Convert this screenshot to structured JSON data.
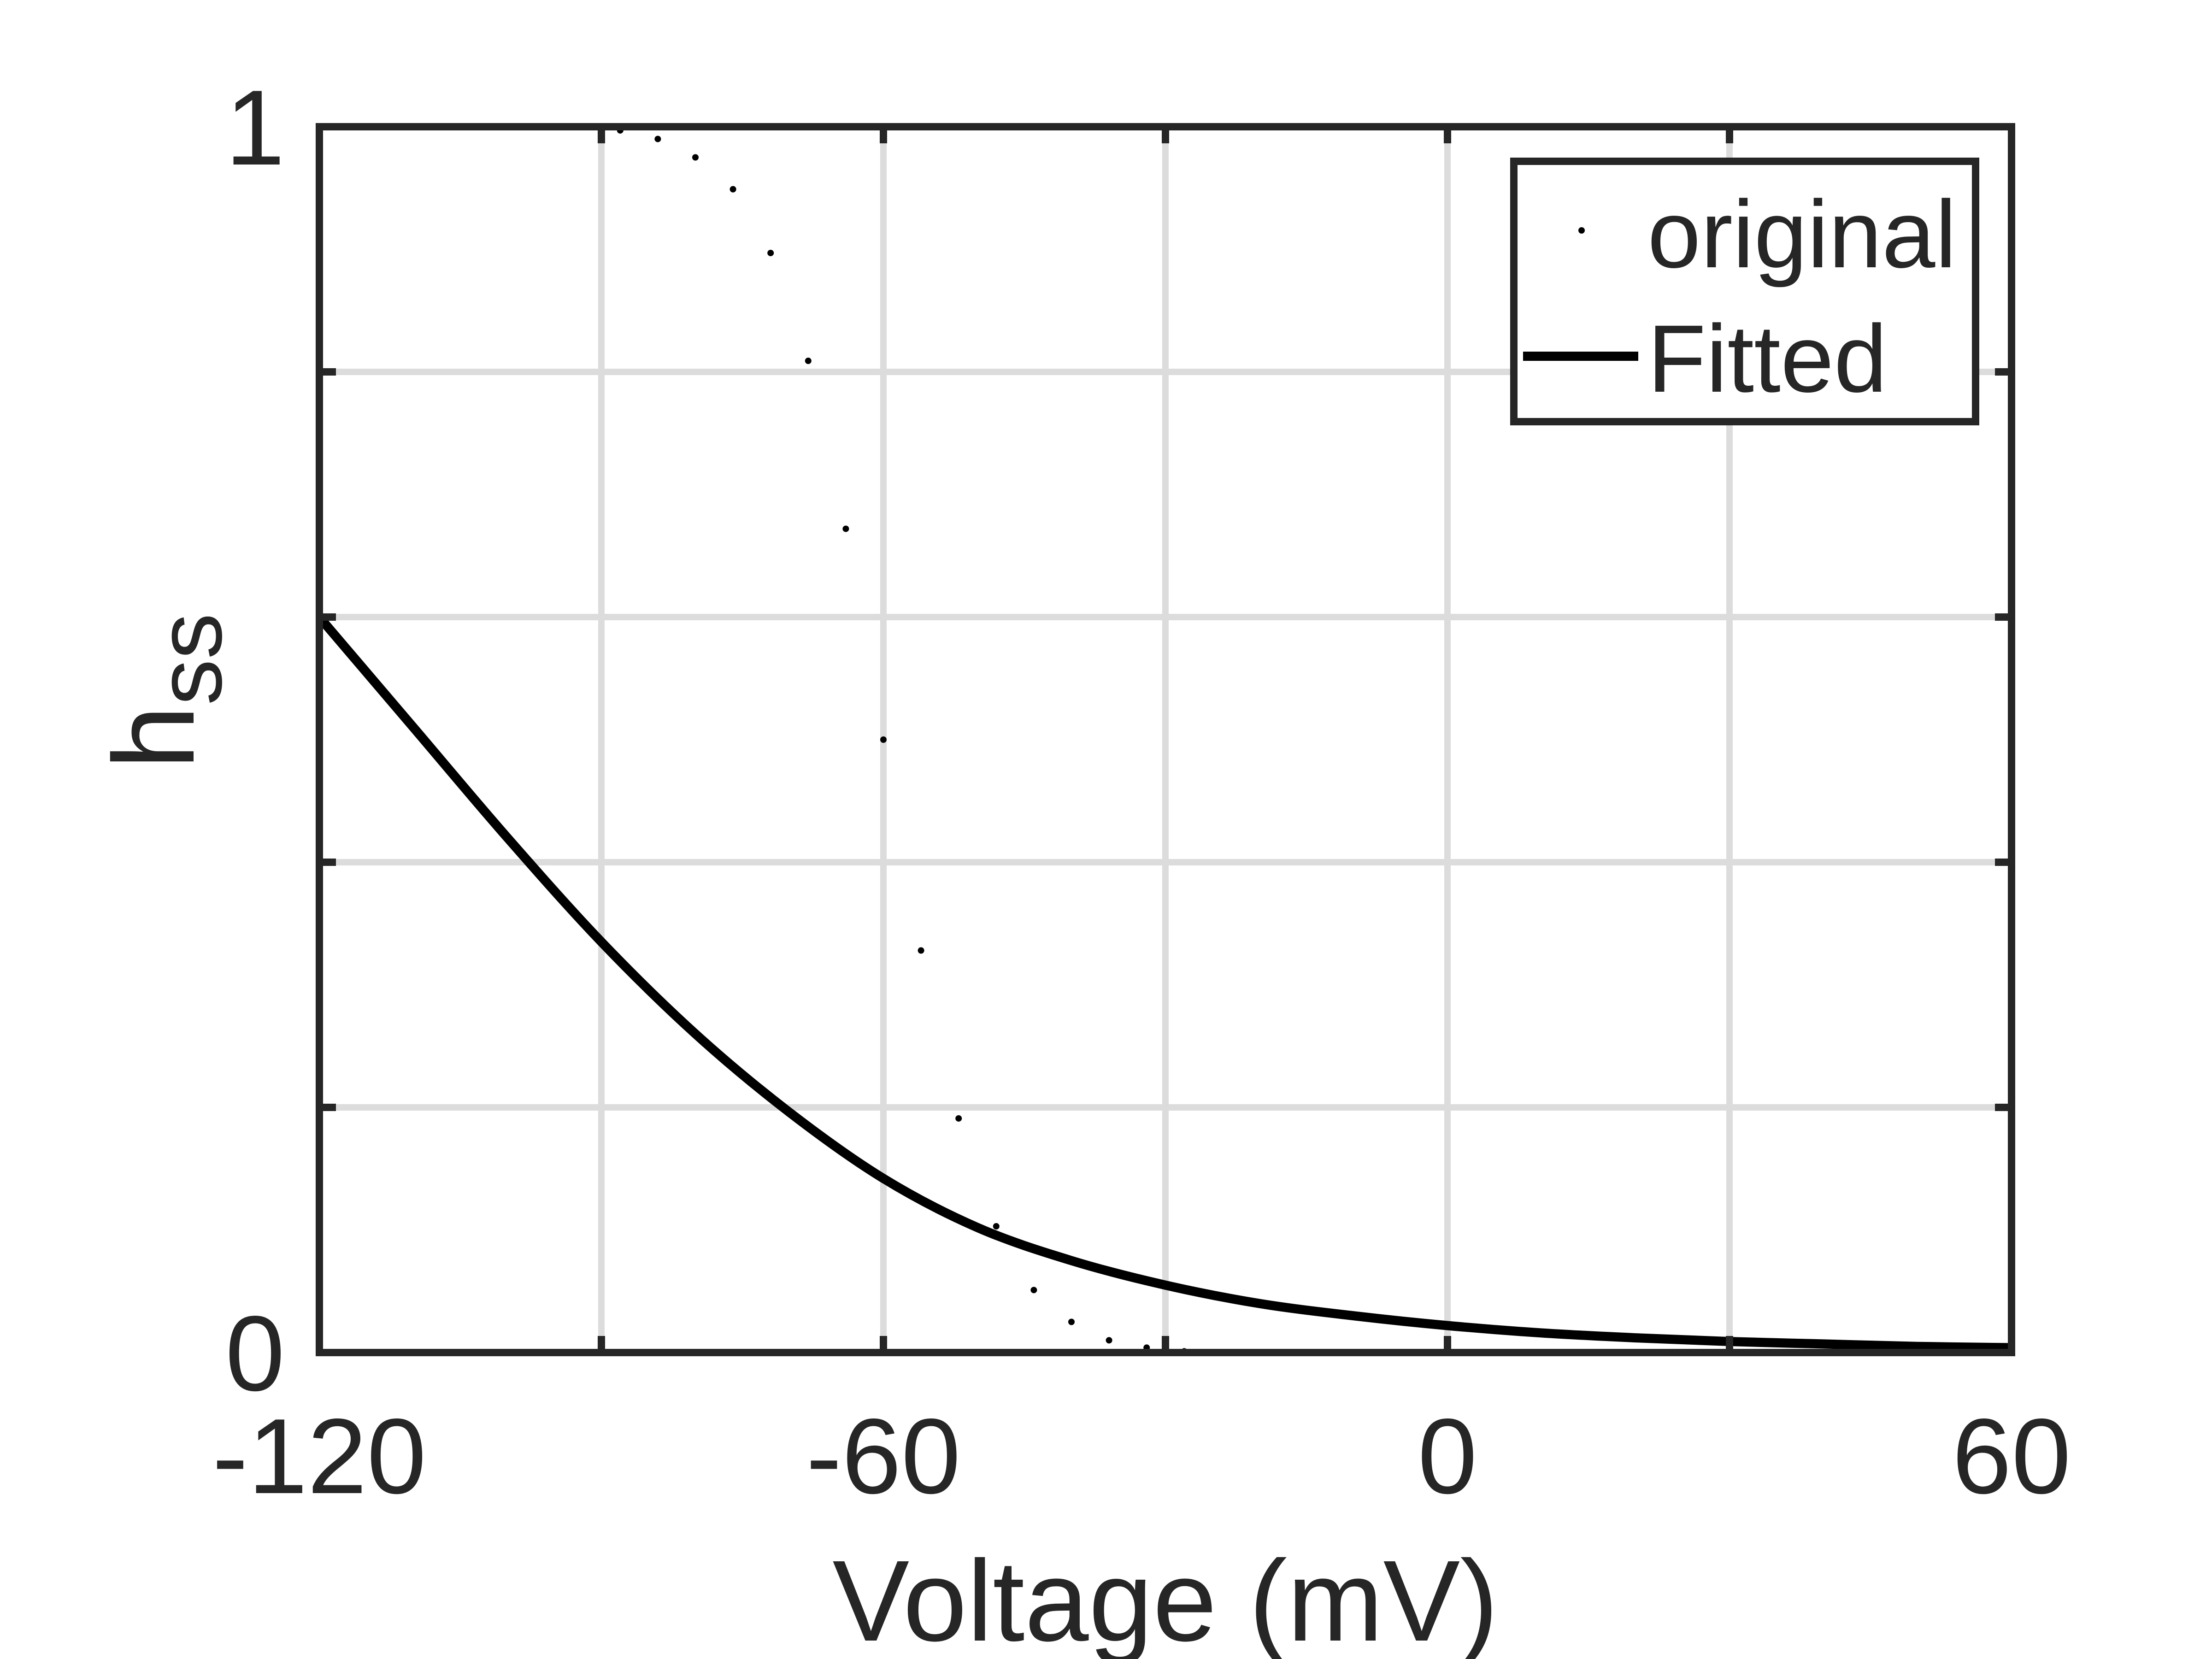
{
  "chart_data": {
    "type": "line",
    "title": "",
    "xlabel": "Voltage (mV)",
    "ylabel_main": "h",
    "ylabel_sub": "ss",
    "xlim": [
      -120,
      60
    ],
    "ylim": [
      0,
      1
    ],
    "xticks": [
      -120,
      -90,
      -60,
      -30,
      0,
      30,
      60
    ],
    "xtick_labels": [
      "-120",
      "",
      "-60",
      "",
      "0",
      "",
      "60"
    ],
    "yticks": [
      0,
      0.2,
      0.4,
      0.6,
      0.8,
      1
    ],
    "ytick_labels": [
      "0",
      "",
      "",
      "",
      "",
      "1"
    ],
    "grid": true,
    "legend_position": "top-right",
    "series": [
      {
        "name": "original",
        "style": "dots",
        "color": "#000000",
        "x": [
          -120,
          -116,
          -112,
          -108,
          -104,
          -100,
          -96,
          -92,
          -88,
          -84,
          -80,
          -76,
          -72,
          -68,
          -64,
          -60,
          -56,
          -52,
          -48,
          -44,
          -40,
          -36,
          -32,
          -28,
          -24,
          -20,
          -16,
          -12,
          -8,
          -4,
          0,
          4,
          8,
          12,
          16,
          20,
          24,
          28,
          32,
          36,
          40,
          44,
          48,
          52,
          56,
          60
        ],
        "y": [
          1.0,
          1.0,
          1.0,
          1.0,
          1.0,
          1.0,
          1.0,
          1.0,
          0.997,
          0.99,
          0.975,
          0.949,
          0.897,
          0.809,
          0.672,
          0.5,
          0.328,
          0.191,
          0.103,
          0.051,
          0.025,
          0.01,
          0.004,
          0.001,
          0.0,
          0.0,
          0.0,
          0.0,
          0.0,
          0.0,
          0.0,
          0.0,
          0.0,
          0.0,
          0.0,
          0.0,
          0.0,
          0.0,
          0.0,
          0.0,
          0.0,
          0.0,
          0.0,
          0.0,
          0.0,
          0.0
        ]
      },
      {
        "name": "Fitted",
        "style": "line",
        "color": "#000000",
        "x": [
          -120,
          -110,
          -100,
          -90,
          -80,
          -70,
          -60,
          -50,
          -40,
          -30,
          -20,
          -10,
          0,
          10,
          20,
          30,
          40,
          50,
          60
        ],
        "y": [
          0.6,
          0.51,
          0.42,
          0.335,
          0.26,
          0.196,
          0.142,
          0.102,
          0.075,
          0.055,
          0.04,
          0.03,
          0.022,
          0.016,
          0.012,
          0.009,
          0.007,
          0.005,
          0.004
        ]
      }
    ]
  }
}
